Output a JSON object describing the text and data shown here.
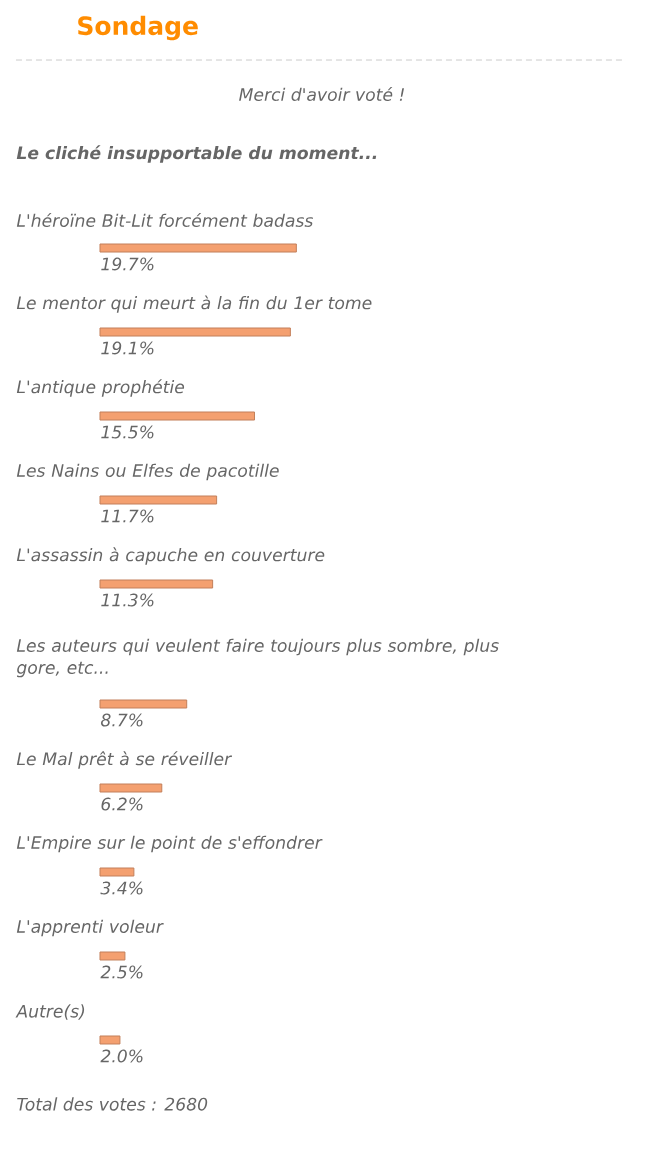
{
  "chart_data": {
    "type": "bar",
    "orientation": "horizontal",
    "title": "Sondage",
    "subtitle": "Le cliché insupportable du moment...",
    "categories": [
      "L'héroïne Bit-Lit forcément badass",
      "Le mentor qui meurt à la fin du 1er tome",
      "L'antique prophétie",
      "Les Nains ou Elfes de pacotille",
      "L'assassin à capuche en couverture",
      "Les auteurs qui veulent faire toujours plus sombre, plus gore, etc...",
      "Le Mal prêt à se réveiller",
      "L'Empire sur le point de s'effondrer",
      "L'apprenti voleur",
      "Autre(s)"
    ],
    "values": [
      19.7,
      19.1,
      15.5,
      11.7,
      11.3,
      8.7,
      6.2,
      3.4,
      2.5,
      2.0
    ],
    "value_labels": [
      "19.7%",
      "19.1%",
      "15.5%",
      "11.7%",
      "11.3%",
      "8.7%",
      "6.2%",
      "3.4%",
      "2.5%",
      "2.0%"
    ],
    "color": "#f4a070",
    "annotations": [
      "Merci d'avoir voté !",
      "Total des votes : 2680"
    ]
  }
}
